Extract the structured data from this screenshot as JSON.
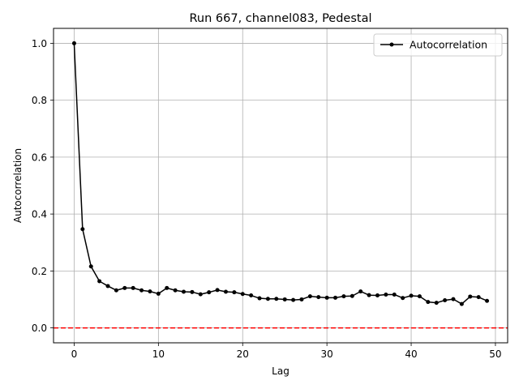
{
  "chart_data": {
    "type": "line",
    "title": "Run 667, channel083, Pedestal",
    "xlabel": "Lag",
    "ylabel": "Autocorrelation",
    "xlim": [
      -2.45,
      51.45
    ],
    "ylim": [
      -0.0525,
      1.0525
    ],
    "xticks": [
      0,
      10,
      20,
      30,
      40,
      50
    ],
    "yticks": [
      0.0,
      0.2,
      0.4,
      0.6,
      0.8,
      1.0
    ],
    "xtick_labels": [
      "0",
      "10",
      "20",
      "30",
      "40",
      "50"
    ],
    "ytick_labels": [
      "0.0",
      "0.2",
      "0.4",
      "0.6",
      "0.8",
      "1.0"
    ],
    "grid": true,
    "legend_position": "top-right",
    "reference_line": {
      "y": 0.0,
      "style": "dashed",
      "color": "#ff0000"
    },
    "series": [
      {
        "name": "Autocorrelation",
        "color": "#000000",
        "marker": "dot",
        "x": [
          0,
          1,
          2,
          3,
          4,
          5,
          6,
          7,
          8,
          9,
          10,
          11,
          12,
          13,
          14,
          15,
          16,
          17,
          18,
          19,
          20,
          21,
          22,
          23,
          24,
          25,
          26,
          27,
          28,
          29,
          30,
          31,
          32,
          33,
          34,
          35,
          36,
          37,
          38,
          39,
          40,
          41,
          42,
          43,
          44,
          45,
          46,
          47,
          48,
          49
        ],
        "values": [
          1.0,
          0.347,
          0.216,
          0.164,
          0.147,
          0.132,
          0.14,
          0.14,
          0.132,
          0.128,
          0.12,
          0.14,
          0.132,
          0.127,
          0.126,
          0.118,
          0.125,
          0.133,
          0.127,
          0.125,
          0.119,
          0.114,
          0.104,
          0.102,
          0.102,
          0.1,
          0.098,
          0.1,
          0.111,
          0.108,
          0.106,
          0.106,
          0.111,
          0.112,
          0.128,
          0.115,
          0.114,
          0.117,
          0.117,
          0.105,
          0.113,
          0.111,
          0.091,
          0.088,
          0.097,
          0.101,
          0.084,
          0.11,
          0.108,
          0.095
        ]
      }
    ]
  }
}
